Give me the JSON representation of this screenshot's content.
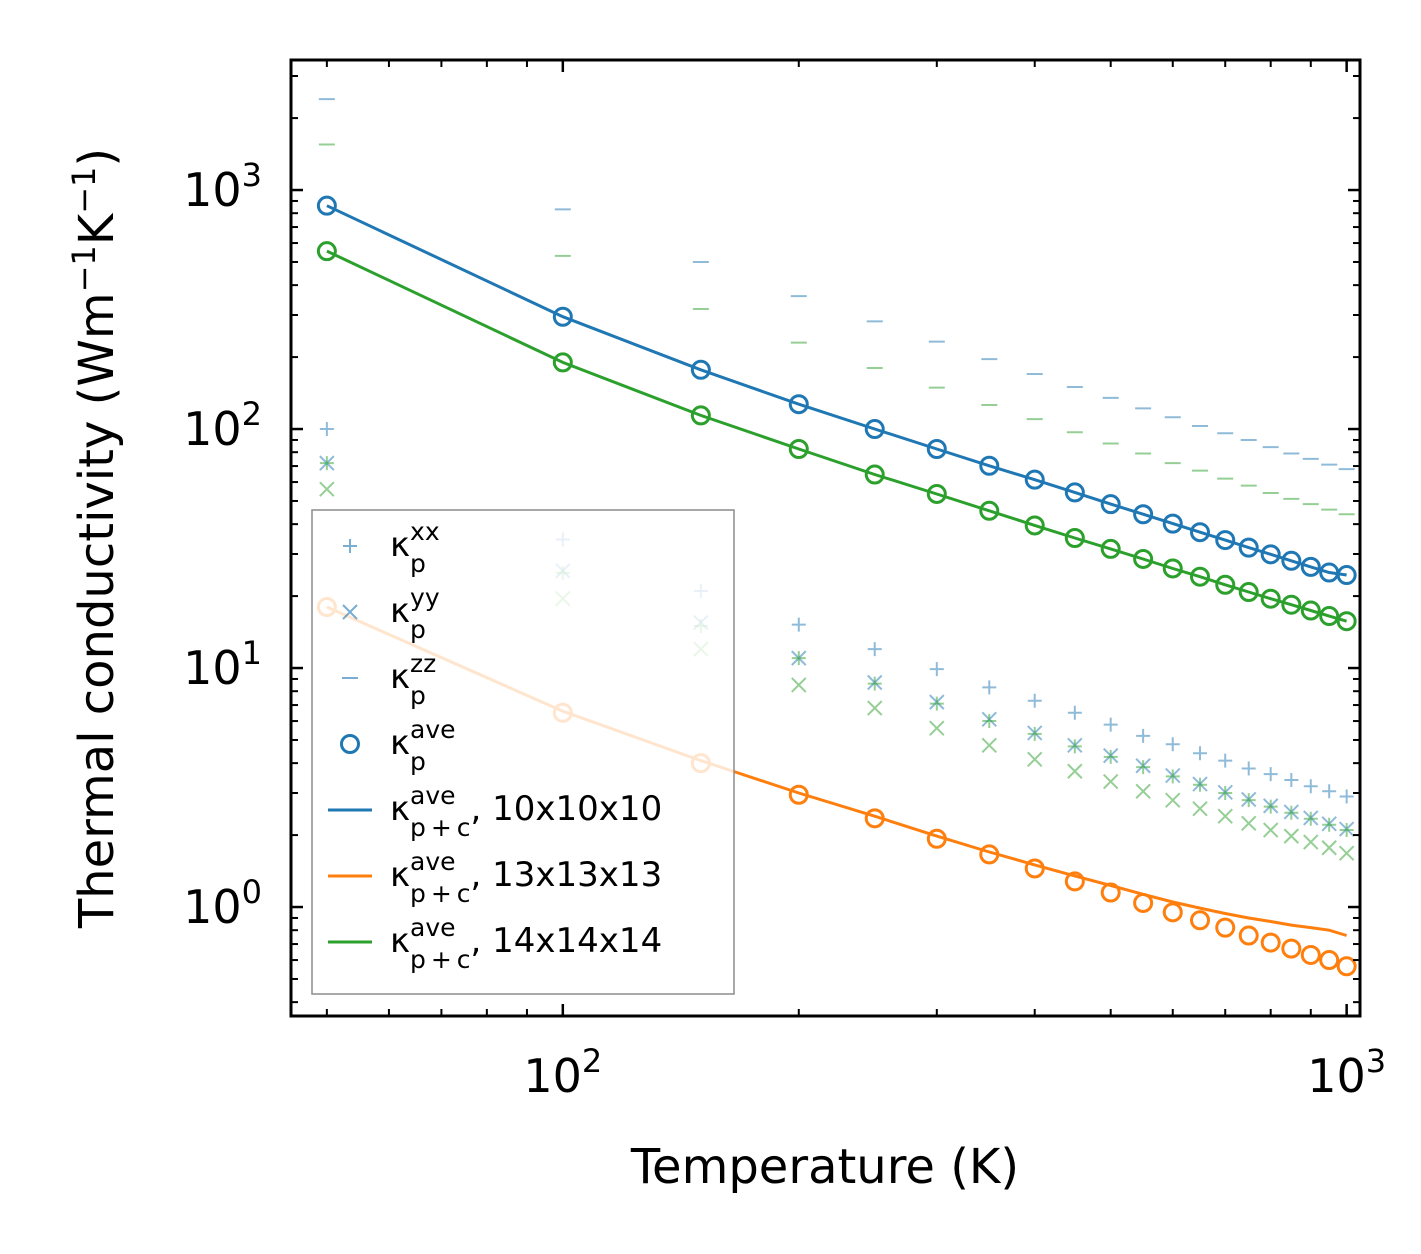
{
  "chart_data": {
    "type": "scatter",
    "xlabel": "Temperature (K)",
    "ylabel": "Thermal conductivity (Wm$^{-1}$K$^{-1}$)",
    "ylabel_parts": {
      "base": "Thermal conductivity (Wm",
      "sup1": "−1",
      "mid": "K",
      "sup2": "−1",
      "end": ")"
    },
    "xscale": "log",
    "yscale": "log",
    "xlim": [
      45,
      1040
    ],
    "ylim": [
      0.35,
      3500
    ],
    "xticks": [
      {
        "base": "10",
        "exp": "2",
        "value": 100
      },
      {
        "base": "10",
        "exp": "3",
        "value": 1000
      }
    ],
    "yticks": [
      {
        "base": "10",
        "exp": "0",
        "value": 1
      },
      {
        "base": "10",
        "exp": "1",
        "value": 10
      },
      {
        "base": "10",
        "exp": "2",
        "value": 100
      },
      {
        "base": "10",
        "exp": "3",
        "value": 1000
      }
    ],
    "colors": {
      "blue": "#1f77b4",
      "orange": "#ff7f0e",
      "green": "#2ca02c"
    },
    "legend": [
      {
        "kappa": "κ",
        "sup": "xx",
        "sub": "p",
        "text": "",
        "marker": "plus",
        "color": "#1f77b4"
      },
      {
        "kappa": "κ",
        "sup": "yy",
        "sub": "p",
        "text": "",
        "marker": "x",
        "color": "#1f77b4"
      },
      {
        "kappa": "κ",
        "sup": "zz",
        "sub": "p",
        "text": "",
        "marker": "hline",
        "color": "#1f77b4"
      },
      {
        "kappa": "κ",
        "sup": "ave",
        "sub": "p",
        "text": "",
        "marker": "circle",
        "color": "#1f77b4"
      },
      {
        "kappa": "κ",
        "sup": "ave",
        "sub": "p + c",
        "text": ", 10x10x10",
        "marker": "line",
        "color": "#1f77b4"
      },
      {
        "kappa": "κ",
        "sup": "ave",
        "sub": "p + c",
        "text": ", 13x13x13",
        "marker": "line",
        "color": "#ff7f0e"
      },
      {
        "kappa": "κ",
        "sup": "ave",
        "sub": "p + c",
        "text": ", 14x14x14",
        "marker": "line",
        "color": "#2ca02c"
      }
    ],
    "legend_position": "lower-left",
    "temperatures": [
      50,
      100,
      150,
      200,
      250,
      300,
      350,
      400,
      450,
      500,
      550,
      600,
      650,
      700,
      750,
      800,
      850,
      900,
      950,
      1000
    ],
    "series": [
      {
        "name": "10x10x10 kappa_p^xx",
        "color": "#1f77b4",
        "marker": "plus",
        "alpha": 0.5,
        "values": [
          100,
          34.5,
          21,
          15.2,
          12,
          9.9,
          8.3,
          7.3,
          6.5,
          5.8,
          5.2,
          4.8,
          4.4,
          4.1,
          3.8,
          3.6,
          3.4,
          3.2,
          3.05,
          2.9
        ]
      },
      {
        "name": "10x10x10 kappa_p^yy",
        "color": "#1f77b4",
        "marker": "x",
        "alpha": 0.5,
        "values": [
          72,
          25.5,
          15.5,
          11,
          8.7,
          7.2,
          6.1,
          5.35,
          4.75,
          4.3,
          3.9,
          3.55,
          3.27,
          3.02,
          2.82,
          2.65,
          2.5,
          2.36,
          2.23,
          2.12
        ]
      },
      {
        "name": "10x10x10 kappa_p^zz",
        "color": "#1f77b4",
        "marker": "hline",
        "alpha": 0.5,
        "values": [
          2400,
          830,
          500,
          360,
          282,
          232,
          196,
          170,
          150,
          135,
          122,
          112,
          103,
          96,
          90,
          84,
          79,
          75,
          71,
          68
        ]
      },
      {
        "name": "14x14x14 kappa_p^xx",
        "color": "#2ca02c",
        "marker": "plus",
        "alpha": 0.5,
        "values": [
          72,
          25,
          15,
          11,
          8.6,
          7.1,
          6.0,
          5.3,
          4.7,
          4.25,
          3.85,
          3.52,
          3.25,
          3.0,
          2.8,
          2.63,
          2.48,
          2.34,
          2.21,
          2.1
        ]
      },
      {
        "name": "14x14x14 kappa_p^yy",
        "color": "#2ca02c",
        "marker": "x",
        "alpha": 0.5,
        "values": [
          56,
          19.5,
          12,
          8.5,
          6.8,
          5.6,
          4.75,
          4.15,
          3.7,
          3.35,
          3.05,
          2.8,
          2.58,
          2.4,
          2.24,
          2.1,
          1.98,
          1.87,
          1.77,
          1.68
        ]
      },
      {
        "name": "14x14x14 kappa_p^zz",
        "color": "#2ca02c",
        "marker": "hline",
        "alpha": 0.5,
        "values": [
          1550,
          530,
          318,
          230,
          180,
          149,
          126,
          110,
          97,
          87,
          79,
          72,
          67,
          62,
          58,
          54,
          51,
          48.5,
          46,
          44
        ]
      },
      {
        "name": "10x10x10 kappa_p^ave",
        "color": "#1f77b4",
        "marker": "circle",
        "values": [
          860,
          295,
          177,
          127,
          100,
          82.5,
          70.2,
          61.4,
          54.3,
          48.5,
          44,
          40.2,
          37,
          34.3,
          31.9,
          29.9,
          28.1,
          26.5,
          25.1,
          24.5
        ]
      },
      {
        "name": "14x14x14 kappa_p^ave",
        "color": "#2ca02c",
        "marker": "circle",
        "values": [
          555,
          190,
          114,
          82.5,
          64.5,
          53.5,
          45.5,
          39.5,
          35,
          31.5,
          28.6,
          26.1,
          24.1,
          22.3,
          20.8,
          19.5,
          18.4,
          17.4,
          16.5,
          15.7
        ]
      },
      {
        "name": "13x13x13 kappa_p^ave",
        "color": "#ff7f0e",
        "marker": "circle",
        "values": [
          18,
          6.5,
          4.0,
          2.95,
          2.35,
          1.93,
          1.66,
          1.45,
          1.28,
          1.15,
          1.04,
          0.95,
          0.88,
          0.82,
          0.76,
          0.71,
          0.67,
          0.63,
          0.6,
          0.565
        ]
      },
      {
        "name": "kappa_p+c^ave, 10x10x10",
        "color": "#1f77b4",
        "marker": "line",
        "values": [
          860,
          295,
          177,
          127,
          100,
          82.5,
          70.2,
          61.4,
          54.3,
          48.5,
          44,
          40.2,
          37,
          34.3,
          31.9,
          29.9,
          28.1,
          26.5,
          25.1,
          24.5
        ]
      },
      {
        "name": "kappa_p+c^ave, 14x14x14",
        "color": "#2ca02c",
        "marker": "line",
        "values": [
          555,
          190,
          114,
          82.5,
          64.5,
          53.5,
          45.5,
          39.5,
          35,
          31.5,
          28.6,
          26.1,
          24.1,
          22.3,
          20.8,
          19.5,
          18.4,
          17.4,
          16.5,
          15.7
        ]
      },
      {
        "name": "kappa_p+c^ave, 13x13x13",
        "color": "#ff7f0e",
        "marker": "line",
        "values": [
          18,
          6.6,
          4.1,
          3.0,
          2.4,
          1.98,
          1.7,
          1.5,
          1.35,
          1.23,
          1.13,
          1.05,
          0.99,
          0.94,
          0.9,
          0.87,
          0.84,
          0.82,
          0.8,
          0.76
        ]
      }
    ]
  }
}
